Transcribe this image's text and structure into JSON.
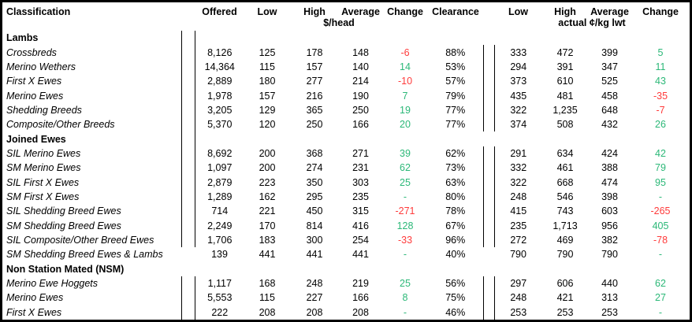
{
  "colors": {
    "positive": "#2cb878",
    "negative": "#ff3b3b",
    "border": "#000000",
    "text": "#000000",
    "background": "#ffffff"
  },
  "header": {
    "cols": [
      "Classification",
      "Offered",
      "Low",
      "High",
      "Average",
      "Change",
      "Clearance",
      "Low",
      "High",
      "Average",
      "Change"
    ],
    "units": [
      "$/head",
      "actual ¢/kg lwt"
    ]
  },
  "column_keys": [
    "offered",
    "low",
    "high",
    "average",
    "change",
    "clearance",
    "low-lwt",
    "high-lwt",
    "average-lwt",
    "change-lwt"
  ],
  "sections": [
    {
      "label": "Lambs",
      "left_divider_on_header": true,
      "rows": [
        {
          "label": "Crossbreds",
          "values": [
            "8,126",
            "125",
            "178",
            "148",
            "-6",
            "88%",
            "333",
            "472",
            "399",
            "5"
          ]
        },
        {
          "label": "Merino Wethers",
          "values": [
            "14,364",
            "115",
            "157",
            "140",
            "14",
            "53%",
            "294",
            "391",
            "347",
            "11"
          ]
        },
        {
          "label": "First X Ewes",
          "values": [
            "2,889",
            "180",
            "277",
            "214",
            "-10",
            "57%",
            "373",
            "610",
            "525",
            "43"
          ]
        },
        {
          "label": "Merino Ewes",
          "values": [
            "1,978",
            "157",
            "216",
            "190",
            "7",
            "79%",
            "435",
            "481",
            "458",
            "-35"
          ]
        },
        {
          "label": "Shedding Breeds",
          "values": [
            "3,205",
            "129",
            "365",
            "250",
            "19",
            "77%",
            "322",
            "1,235",
            "648",
            "-7"
          ]
        },
        {
          "label": "Composite/Other Breeds",
          "values": [
            "5,370",
            "120",
            "250",
            "166",
            "20",
            "77%",
            "374",
            "508",
            "432",
            "26"
          ]
        }
      ]
    },
    {
      "label": "Joined Ewes",
      "left_divider_on_header": true,
      "rows": [
        {
          "label": "SIL Merino Ewes",
          "values": [
            "8,692",
            "200",
            "368",
            "271",
            "39",
            "62%",
            "291",
            "634",
            "424",
            "42"
          ]
        },
        {
          "label": "SM Merino Ewes",
          "values": [
            "1,097",
            "200",
            "274",
            "231",
            "62",
            "73%",
            "332",
            "461",
            "388",
            "79"
          ]
        },
        {
          "label": "SIL First X Ewes",
          "values": [
            "2,879",
            "223",
            "350",
            "303",
            "25",
            "63%",
            "322",
            "668",
            "474",
            "95"
          ]
        },
        {
          "label": "SM First X Ewes",
          "values": [
            "1,289",
            "162",
            "295",
            "235",
            "-",
            "80%",
            "248",
            "546",
            "398",
            "-"
          ]
        },
        {
          "label": "SIL Shedding Breed Ewes",
          "values": [
            "714",
            "221",
            "450",
            "315",
            "-271",
            "78%",
            "415",
            "743",
            "603",
            "-265"
          ]
        },
        {
          "label": "SM Shedding Breed Ewes",
          "values": [
            "2,249",
            "170",
            "814",
            "416",
            "128",
            "67%",
            "235",
            "1,713",
            "956",
            "405"
          ]
        },
        {
          "label": "SIL Composite/Other Breed Ewes",
          "values": [
            "1,706",
            "183",
            "300",
            "254",
            "-33",
            "96%",
            "272",
            "469",
            "382",
            "-78"
          ]
        },
        {
          "label": "SM Shedding Breed Ewes & Lambs",
          "values": [
            "139",
            "441",
            "441",
            "441",
            "-",
            "40%",
            "790",
            "790",
            "790",
            "-"
          ],
          "dividers": false
        }
      ]
    },
    {
      "label": "Non Station Mated (NSM)",
      "left_divider_on_header": false,
      "rows": [
        {
          "label": "Merino Ewe Hoggets",
          "values": [
            "1,117",
            "168",
            "248",
            "219",
            "25",
            "56%",
            "297",
            "606",
            "440",
            "62"
          ]
        },
        {
          "label": "Merino Ewes",
          "values": [
            "5,553",
            "115",
            "227",
            "166",
            "8",
            "75%",
            "248",
            "421",
            "313",
            "27"
          ]
        },
        {
          "label": "First X Ewes",
          "values": [
            "222",
            "208",
            "208",
            "208",
            "-",
            "46%",
            "253",
            "253",
            "253",
            "-"
          ]
        }
      ]
    }
  ]
}
